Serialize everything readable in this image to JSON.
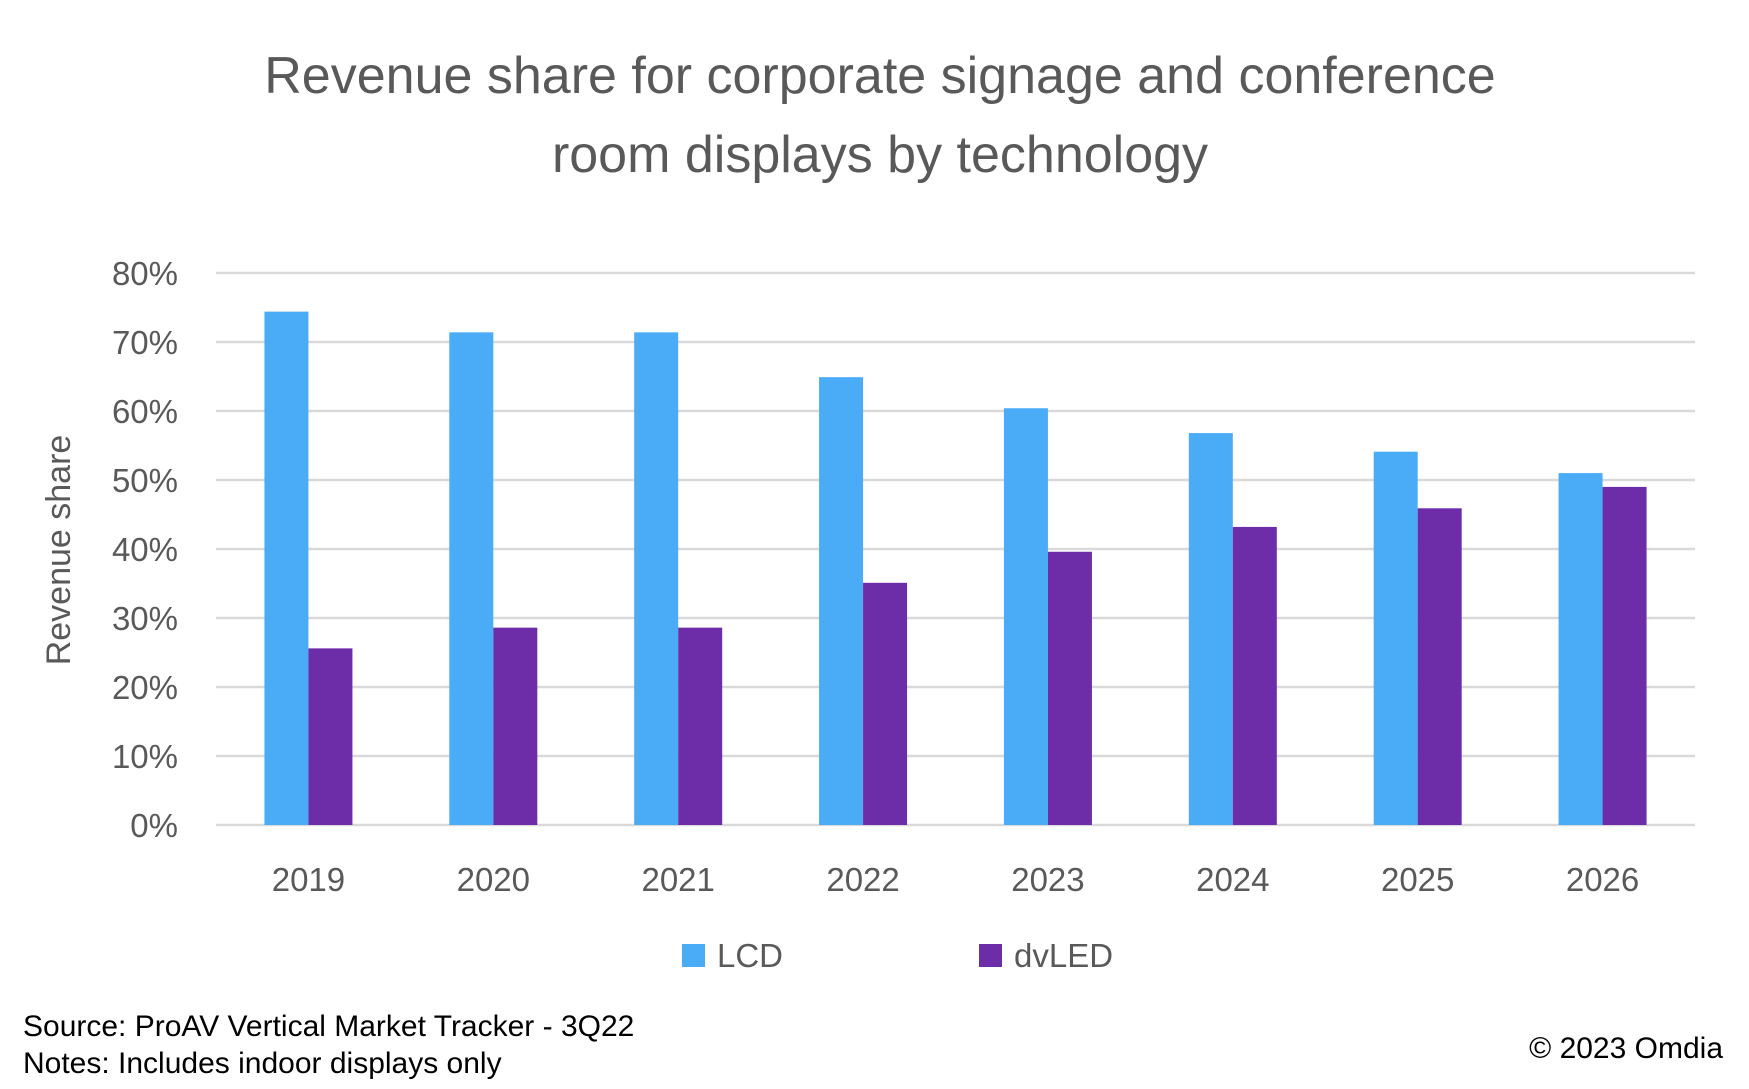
{
  "chart_data": {
    "type": "bar",
    "title": [
      "Revenue share for corporate signage and conference",
      "room displays by technology"
    ],
    "xlabel": "",
    "ylabel": "Revenue share",
    "ylim": [
      0,
      80
    ],
    "yticks": [
      0,
      10,
      20,
      30,
      40,
      50,
      60,
      70,
      80
    ],
    "ytick_labels": [
      "0%",
      "10%",
      "20%",
      "30%",
      "40%",
      "50%",
      "60%",
      "70%",
      "80%"
    ],
    "grid": true,
    "legend_position": "bottom-center",
    "categories": [
      "2019",
      "2020",
      "2021",
      "2022",
      "2023",
      "2024",
      "2025",
      "2026"
    ],
    "series": [
      {
        "name": "LCD",
        "color": "#4AABF7",
        "values": [
          74.4,
          71.4,
          71.4,
          64.9,
          60.4,
          56.8,
          54.1,
          51.0
        ]
      },
      {
        "name": "dvLED",
        "color": "#6D2DA8",
        "values": [
          25.6,
          28.6,
          28.6,
          35.1,
          39.6,
          43.2,
          45.9,
          49.0
        ]
      }
    ]
  },
  "footer": {
    "source": "Source: ProAV Vertical Market Tracker - 3Q22",
    "notes": "Notes: Includes indoor displays only",
    "copyright": "© 2023 Omdia"
  }
}
